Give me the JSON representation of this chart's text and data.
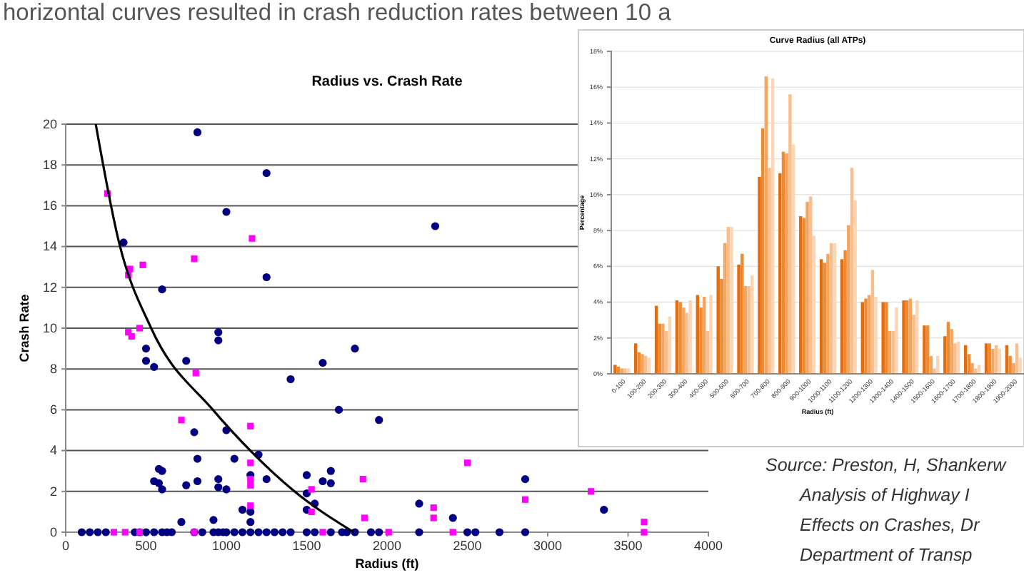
{
  "chart_data": [
    {
      "type": "scatter",
      "title": "Radius vs. Crash Rate",
      "xlabel": "Radius (ft)",
      "ylabel": "Crash Rate",
      "xlim": [
        0,
        4000
      ],
      "xticks": [
        0,
        500,
        1000,
        1500,
        2000,
        2500,
        3000,
        3500,
        4000
      ],
      "ylim": [
        0,
        20
      ],
      "yticks": [
        0,
        2,
        4,
        6,
        8,
        10,
        12,
        14,
        16,
        18,
        20
      ],
      "grid": "y",
      "annotations": [
        "horizontal curves resulted in crash reduction rates between 10 a",
        "Source: Preston, H, Shankerw",
        "Analysis of Highway I",
        "Effects on Crashes, Dr",
        "Department of Transp"
      ],
      "series": [
        {
          "type": "scatter",
          "color": "#000080",
          "marker": "circle",
          "x": [
            820,
            1250,
            1000,
            360,
            1250,
            600,
            500,
            500,
            550,
            750,
            950,
            950,
            1400,
            1600,
            1700,
            1800,
            2300,
            1950,
            800,
            820,
            820,
            750,
            580,
            600,
            550,
            580,
            600,
            950,
            950,
            1000,
            1000,
            1050,
            1200,
            1150,
            1150,
            1150,
            1100,
            1250,
            720,
            920,
            1500,
            1500,
            1500,
            1550,
            1600,
            1650,
            1650,
            2200,
            2410,
            2860,
            3350,
            100,
            150,
            200,
            250,
            430,
            460,
            500,
            550,
            600,
            630,
            660,
            800,
            850,
            920,
            950,
            980,
            1000,
            1050,
            1100,
            1150,
            1200,
            1250,
            1300,
            1350,
            1400,
            1500,
            1550,
            1650,
            1720,
            1750,
            1800,
            1900,
            1950,
            2200,
            2500,
            2550,
            2700,
            2860
          ],
          "values": [
            19.6,
            17.6,
            15.7,
            14.2,
            12.5,
            11.9,
            9.0,
            8.4,
            8.1,
            8.4,
            9.8,
            9.4,
            7.5,
            8.3,
            6.0,
            9.0,
            15.0,
            5.5,
            4.9,
            3.6,
            2.5,
            2.3,
            3.1,
            3.0,
            2.5,
            2.4,
            2.1,
            2.6,
            2.2,
            2.1,
            5.0,
            3.6,
            3.8,
            2.8,
            1.0,
            0.5,
            1.1,
            2.6,
            0.5,
            0.6,
            2.8,
            1.9,
            1.1,
            1.4,
            2.5,
            2.4,
            3.0,
            1.4,
            0.7,
            2.6,
            1.1,
            0,
            0,
            0,
            0,
            0,
            0,
            0,
            0,
            0,
            0,
            0,
            0,
            0,
            0,
            0,
            0,
            0,
            0,
            0,
            0,
            0,
            0,
            0,
            0,
            0,
            0,
            0,
            0,
            0,
            0,
            0,
            0,
            0,
            0,
            0,
            0,
            0,
            0
          ]
        },
        {
          "type": "scatter",
          "color": "#ff00ff",
          "marker": "square",
          "x": [
            260,
            390,
            400,
            480,
            800,
            1160,
            390,
            410,
            460,
            720,
            810,
            1150,
            1150,
            1150,
            1150,
            1150,
            1530,
            1530,
            2500,
            1850,
            1860,
            2290,
            2290,
            2860,
            3270,
            3600,
            300,
            370,
            460,
            800,
            1600,
            2010,
            2410,
            3600
          ],
          "values": [
            16.6,
            12.6,
            12.9,
            13.1,
            13.4,
            14.4,
            9.8,
            9.6,
            10.0,
            5.5,
            7.8,
            5.2,
            3.4,
            2.6,
            2.3,
            1.3,
            2.1,
            1.0,
            3.4,
            2.6,
            0.7,
            1.2,
            0.7,
            1.6,
            2.0,
            0.5,
            0,
            0,
            0,
            0,
            0,
            0,
            0,
            0
          ]
        },
        {
          "type": "line",
          "color": "#000000",
          "marker": "none",
          "line_style": "solid",
          "x": [
            187,
            332,
            532,
            916,
            1149,
            1424,
            1793
          ],
          "values": [
            20,
            14.2,
            10,
            6,
            4,
            2,
            0
          ]
        }
      ]
    },
    {
      "type": "bar",
      "title": "Curve Radius (all ATPs)",
      "xlabel": "Radius (ft)",
      "ylabel": "Percentage",
      "grid": "y",
      "ylim": [
        0,
        18
      ],
      "yticks": [
        {
          "value": 0,
          "label": "0%"
        },
        {
          "value": 2,
          "label": "2%"
        },
        {
          "value": 4,
          "label": "4%"
        },
        {
          "value": 6,
          "label": "6%"
        },
        {
          "value": 8,
          "label": "8%"
        },
        {
          "value": 10,
          "label": "10%"
        },
        {
          "value": 12,
          "label": "12%"
        },
        {
          "value": 14,
          "label": "14%"
        },
        {
          "value": 16,
          "label": "16%"
        },
        {
          "value": 18,
          "label": "18%"
        }
      ],
      "categories": [
        "0-100",
        "100-200",
        "200-300",
        "300-400",
        "400-500",
        "500-600",
        "600-700",
        "700-800",
        "800-900",
        "900-1000",
        "1000-1100",
        "1100-1200",
        "1200-1300",
        "1300-1400",
        "1400-1500",
        "1500-1600",
        "1600-1700",
        "1700-1800",
        "1800-1900",
        "1900-2000"
      ],
      "series": [
        {
          "color": "#e46c0a",
          "values": [
            0.5,
            1.7,
            3.8,
            4.1,
            4.4,
            6.0,
            6.1,
            11.0,
            11.2,
            8.8,
            6.4,
            6.4,
            4.0,
            4.0,
            4.1,
            2.7,
            2.1,
            1.6,
            1.7,
            1.6
          ]
        },
        {
          "color": "#f08a30",
          "values": [
            0.4,
            1.2,
            2.8,
            4.0,
            3.7,
            5.3,
            6.7,
            13.7,
            12.4,
            8.7,
            6.2,
            6.9,
            4.2,
            4.0,
            4.1,
            2.7,
            2.9,
            1.1,
            1.7,
            1.0
          ]
        },
        {
          "color": "#f6a55f",
          "values": [
            0.3,
            1.1,
            2.8,
            3.7,
            4.3,
            7.3,
            4.9,
            16.6,
            12.3,
            9.6,
            6.7,
            8.3,
            4.4,
            2.4,
            4.2,
            1.0,
            2.5,
            0.6,
            1.4,
            0.6
          ]
        },
        {
          "color": "#f9be8e",
          "values": [
            0.3,
            1.0,
            2.4,
            3.4,
            2.4,
            8.2,
            4.9,
            11.5,
            15.6,
            9.9,
            7.3,
            11.5,
            5.8,
            2.4,
            3.3,
            0.3,
            1.7,
            0.3,
            1.6,
            1.7
          ]
        },
        {
          "color": "#fcd5b5",
          "values": [
            0.3,
            0.9,
            3.2,
            4.1,
            4.4,
            8.2,
            5.5,
            16.5,
            12.8,
            7.7,
            7.3,
            9.7,
            4.3,
            3.7,
            4.1,
            1.0,
            1.8,
            0.5,
            1.4,
            0.9
          ]
        }
      ]
    }
  ]
}
